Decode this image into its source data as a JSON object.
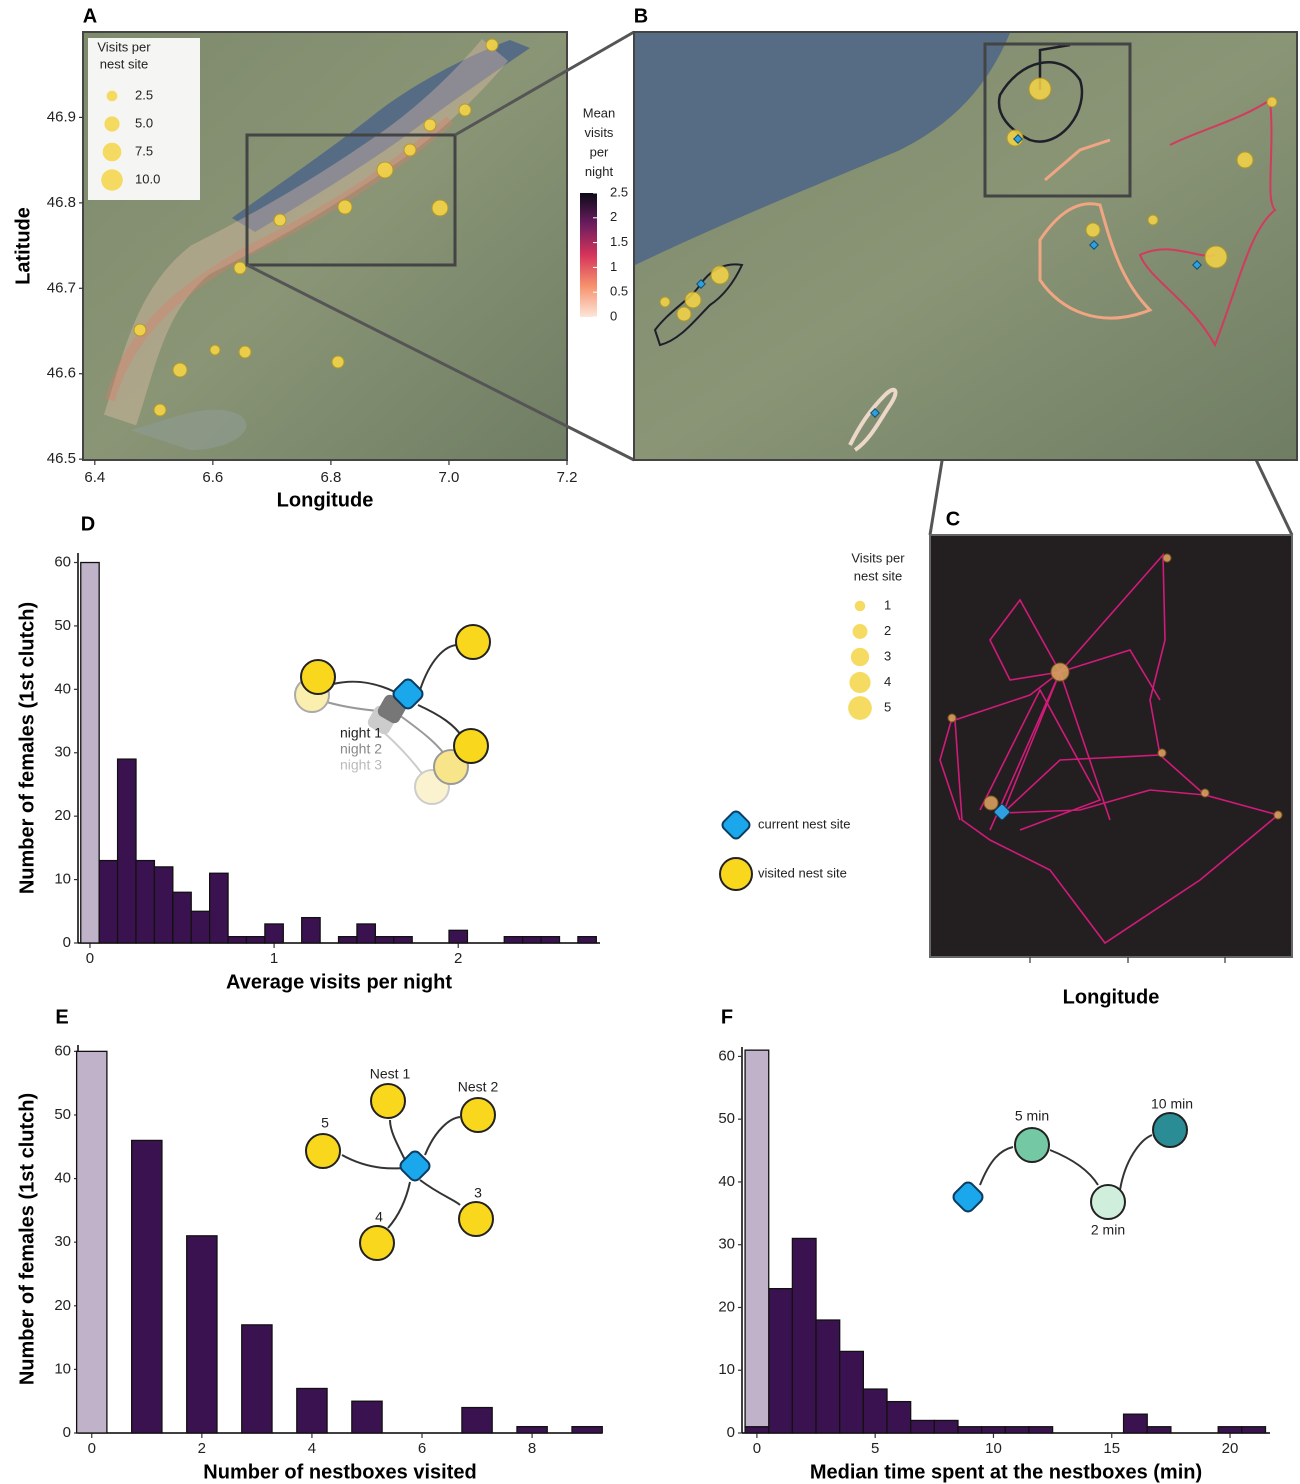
{
  "chart_data": [
    {
      "panel": "A",
      "type": "map",
      "xlabel": "Longitude",
      "ylabel": "Latitude",
      "xlim": [
        6.38,
        7.2
      ],
      "xticks": [
        6.4,
        6.6,
        6.8,
        {
          "value": 7,
          "label": "7.0"
        },
        7.2
      ],
      "ylim": [
        46.499,
        47.0
      ],
      "yticks": [
        46.5,
        46.6,
        46.7,
        46.8,
        46.9
      ],
      "size_legend": {
        "title": [
          "Visits per",
          "nest site"
        ],
        "values": [
          2.5,
          {
            "value": 5,
            "label": "5.0"
          },
          7.5,
          {
            "value": 10,
            "label": "10.0"
          }
        ],
        "color": "#f5d547"
      },
      "colorbar": {
        "title": [
          "Mean",
          "visits",
          "per",
          "night"
        ],
        "lim": [
          0,
          2.5
        ],
        "ticks": [
          0,
          0.5,
          1,
          1.5,
          2,
          2.5
        ],
        "colors": [
          "#fde6da",
          "#f6926c",
          "#d6345a",
          "#6b1d5f",
          "#0b0a18"
        ]
      }
    },
    {
      "panel": "B",
      "type": "map"
    },
    {
      "panel": "C",
      "type": "map",
      "xlabel": "Longitude",
      "size_legend": {
        "title": [
          "Visits per",
          "nest site"
        ],
        "values": [
          1,
          2,
          3,
          4,
          5
        ],
        "color": "#f5d547"
      }
    },
    {
      "panel": "D",
      "type": "histogram",
      "xlabel": "Average visits per night",
      "ylabel": "Number of females (1st clutch)",
      "bins": [
        -0.05,
        0.05,
        0.15,
        0.25,
        0.35,
        0.45,
        0.55,
        0.65,
        0.75,
        0.85,
        0.95,
        1.05,
        1.15,
        1.25,
        1.35,
        1.45,
        1.55,
        1.65,
        1.75,
        1.85,
        1.95,
        2.05,
        2.15,
        2.25,
        2.35,
        2.45,
        2.55,
        2.65,
        2.75
      ],
      "values": [
        60,
        13,
        29,
        13,
        12,
        8,
        5,
        11,
        1,
        1,
        3,
        0,
        4,
        0,
        1,
        3,
        1,
        1,
        0,
        0,
        2,
        0,
        0,
        1,
        1,
        1,
        0,
        1
      ],
      "colors": [
        "#c0b2c8",
        "#3b1250",
        "#3b1250",
        "#3b1250",
        "#3b1250",
        "#3b1250",
        "#3b1250",
        "#3b1250",
        "#3b1250",
        "#3b1250",
        "#3b1250",
        "#3b1250",
        "#3b1250",
        "#3b1250",
        "#3b1250",
        "#3b1250",
        "#3b1250",
        "#3b1250",
        "#3b1250",
        "#3b1250",
        "#3b1250",
        "#3b1250",
        "#3b1250",
        "#3b1250",
        "#3b1250",
        "#3b1250",
        "#3b1250",
        "#3b1250"
      ],
      "xlim": [
        -0.065,
        2.77
      ],
      "xticks": [
        0,
        1,
        2
      ],
      "ylim": [
        0,
        61.5
      ],
      "yticks": [
        0,
        10,
        20,
        30,
        40,
        50,
        60
      ],
      "annotations": [
        "night 1",
        "night 2",
        "night 3"
      ]
    },
    {
      "panel": "E",
      "type": "bar",
      "xlabel": "Number of nestboxes visited",
      "ylabel": "Number of females (1st clutch)",
      "x": [
        0,
        1,
        2,
        3,
        4,
        5,
        6,
        7,
        8,
        9
      ],
      "values": [
        60,
        46,
        31,
        17,
        7,
        5,
        0,
        4,
        1,
        1
      ],
      "colors": [
        "#c0b2c8",
        "#3b1250",
        "#3b1250",
        "#3b1250",
        "#3b1250",
        "#3b1250",
        "#3b1250",
        "#3b1250",
        "#3b1250",
        "#3b1250"
      ],
      "xlim": [
        -0.25,
        9.27
      ],
      "xticks": [
        0,
        2,
        4,
        6,
        8
      ],
      "ylim": [
        0,
        61
      ],
      "yticks": [
        0,
        10,
        20,
        30,
        40,
        50,
        60
      ],
      "annotations": [
        "Nest 1",
        "Nest 2",
        "5",
        "4",
        "3"
      ]
    },
    {
      "panel": "F",
      "type": "histogram",
      "xlabel": "Median time spent at the nestboxes (min)",
      "stacked": true,
      "bins": [
        -0.5,
        0.5,
        1.5,
        2.5,
        3.5,
        4.5,
        5.5,
        6.5,
        7.5,
        8.5,
        9.5,
        10.5,
        11.5,
        12.5,
        13.5,
        14.5,
        15.5,
        16.5,
        17.5,
        18.5,
        19.5,
        20.5,
        21.5
      ],
      "series": [
        {
          "color": "#3b1250",
          "values": [
            1,
            23,
            31,
            18,
            13,
            7,
            5,
            2,
            2,
            1,
            1,
            1,
            1,
            0,
            0,
            0,
            3,
            1,
            0,
            0,
            1,
            1
          ]
        },
        {
          "color": "#c0b2c8",
          "values": [
            60,
            0,
            0,
            0,
            0,
            0,
            0,
            0,
            0,
            0,
            0,
            0,
            0,
            0,
            0,
            0,
            0,
            0,
            0,
            0,
            0,
            0
          ]
        }
      ],
      "xlim": [
        -0.63,
        21.69
      ],
      "xticks": [
        0,
        5,
        10,
        15,
        20
      ],
      "ylim": [
        0,
        61.5
      ],
      "yticks": [
        0,
        10,
        20,
        30,
        40,
        50,
        60
      ],
      "annotations": [
        "5 min",
        "2 min",
        "10 min"
      ]
    }
  ],
  "shared_legend": [
    "current nest site",
    "visited nest site"
  ]
}
